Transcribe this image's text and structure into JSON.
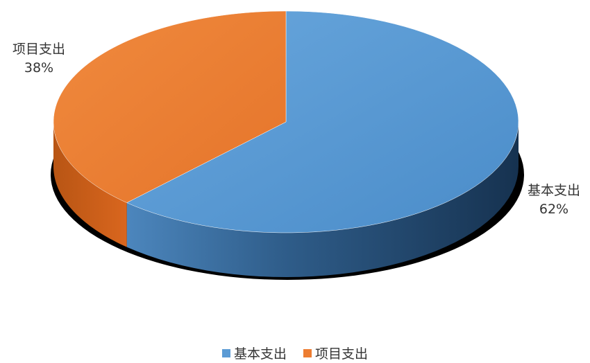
{
  "chart_data": {
    "type": "pie",
    "style": "3d",
    "categories": [
      "基本支出",
      "项目支出"
    ],
    "values": [
      62,
      38
    ],
    "data_labels": [
      {
        "category": "基本支出",
        "percent": "62%"
      },
      {
        "category": "项目支出",
        "percent": "38%"
      }
    ],
    "colors": [
      "#5b9bd5",
      "#ed7d31"
    ],
    "legend": {
      "placement": "bottom",
      "entries": [
        "基本支出",
        "项目支出"
      ]
    }
  }
}
